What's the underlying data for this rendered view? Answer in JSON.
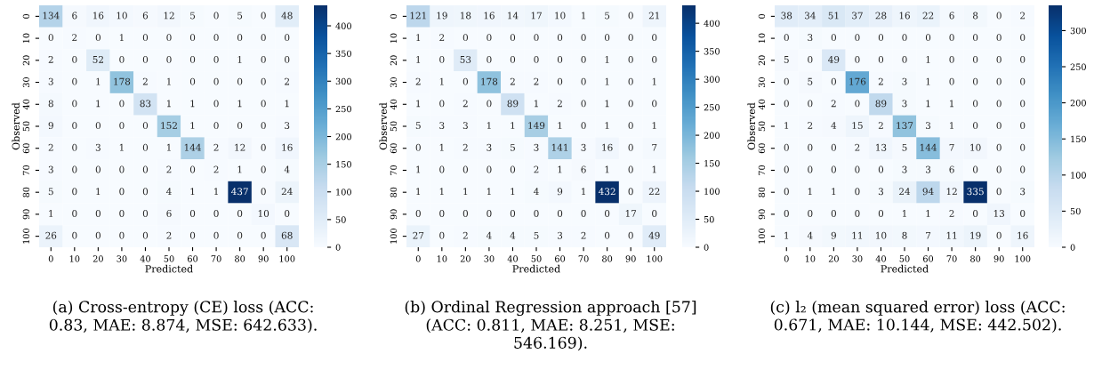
{
  "chart_data": [
    {
      "type": "heatmap",
      "xlabel": "Predicted",
      "ylabel": "Observed",
      "data_labels": true,
      "categories": [
        "0",
        "10",
        "20",
        "30",
        "40",
        "50",
        "60",
        "70",
        "80",
        "90",
        "100"
      ],
      "y_categories": [
        "0",
        "10",
        "20",
        "30",
        "40",
        "50",
        "60",
        "70",
        "80",
        "90",
        "100"
      ],
      "cells": [
        [
          134,
          6,
          16,
          10,
          6,
          12,
          5,
          0,
          5,
          0,
          48
        ],
        [
          0,
          2,
          0,
          1,
          0,
          0,
          0,
          0,
          0,
          0,
          0
        ],
        [
          2,
          0,
          52,
          0,
          0,
          0,
          0,
          0,
          1,
          0,
          0
        ],
        [
          3,
          0,
          1,
          178,
          2,
          1,
          0,
          0,
          0,
          0,
          2
        ],
        [
          8,
          0,
          1,
          0,
          83,
          1,
          1,
          0,
          1,
          0,
          1
        ],
        [
          9,
          0,
          0,
          0,
          0,
          152,
          1,
          0,
          0,
          0,
          3
        ],
        [
          2,
          0,
          3,
          1,
          0,
          1,
          144,
          2,
          12,
          0,
          16
        ],
        [
          3,
          0,
          0,
          0,
          0,
          2,
          0,
          2,
          1,
          0,
          4
        ],
        [
          5,
          0,
          1,
          0,
          0,
          4,
          1,
          1,
          437,
          0,
          24
        ],
        [
          1,
          0,
          0,
          0,
          0,
          6,
          0,
          0,
          0,
          10,
          0
        ],
        [
          26,
          0,
          0,
          0,
          0,
          2,
          0,
          0,
          0,
          0,
          68
        ]
      ],
      "clim": [
        0,
        437
      ],
      "cticks": [
        0,
        50,
        100,
        150,
        200,
        250,
        300,
        350,
        400
      ],
      "annotations": [
        "(a) Cross-entropy (CE) loss (ACC: 0.83, MAE: 8.874, MSE: 642.633)."
      ]
    },
    {
      "type": "heatmap",
      "xlabel": "Predicted",
      "ylabel": "Observed",
      "data_labels": true,
      "categories": [
        "0",
        "10",
        "20",
        "30",
        "40",
        "50",
        "60",
        "70",
        "80",
        "90",
        "100"
      ],
      "y_categories": [
        "0",
        "10",
        "20",
        "30",
        "40",
        "50",
        "60",
        "70",
        "80",
        "90",
        "100"
      ],
      "cells": [
        [
          121,
          19,
          18,
          16,
          14,
          17,
          10,
          1,
          5,
          0,
          21
        ],
        [
          1,
          2,
          0,
          0,
          0,
          0,
          0,
          0,
          0,
          0,
          0
        ],
        [
          1,
          0,
          53,
          0,
          0,
          0,
          0,
          0,
          1,
          0,
          0
        ],
        [
          2,
          1,
          0,
          178,
          2,
          2,
          0,
          0,
          1,
          0,
          1
        ],
        [
          1,
          0,
          2,
          0,
          89,
          1,
          2,
          0,
          1,
          0,
          0
        ],
        [
          5,
          3,
          3,
          1,
          1,
          149,
          1,
          0,
          1,
          0,
          1
        ],
        [
          0,
          1,
          2,
          3,
          5,
          3,
          141,
          3,
          16,
          0,
          7
        ],
        [
          1,
          0,
          0,
          0,
          0,
          2,
          1,
          6,
          1,
          0,
          1
        ],
        [
          1,
          1,
          1,
          1,
          1,
          4,
          9,
          1,
          432,
          0,
          22
        ],
        [
          0,
          0,
          0,
          0,
          0,
          0,
          0,
          0,
          0,
          17,
          0
        ],
        [
          27,
          0,
          2,
          4,
          4,
          5,
          3,
          2,
          0,
          0,
          49
        ]
      ],
      "clim": [
        0,
        432
      ],
      "cticks": [
        0,
        50,
        100,
        150,
        200,
        250,
        300,
        350,
        400
      ],
      "annotations": [
        "(b) Ordinal Regression approach [57] (ACC: 0.811, MAE: 8.251, MSE: 546.169)."
      ]
    },
    {
      "type": "heatmap",
      "xlabel": "Predicted",
      "ylabel": "Observed",
      "data_labels": true,
      "categories": [
        "0",
        "10",
        "20",
        "30",
        "40",
        "50",
        "60",
        "70",
        "80",
        "90",
        "100"
      ],
      "y_categories": [
        "0",
        "10",
        "20",
        "30",
        "40",
        "50",
        "60",
        "70",
        "80",
        "90",
        "100"
      ],
      "cells": [
        [
          38,
          34,
          51,
          37,
          28,
          16,
          22,
          6,
          8,
          0,
          2
        ],
        [
          0,
          3,
          0,
          0,
          0,
          0,
          0,
          0,
          0,
          0,
          0
        ],
        [
          5,
          0,
          49,
          0,
          0,
          0,
          1,
          0,
          0,
          0,
          0
        ],
        [
          0,
          5,
          0,
          176,
          2,
          3,
          1,
          0,
          0,
          0,
          0
        ],
        [
          0,
          0,
          2,
          0,
          89,
          3,
          1,
          1,
          0,
          0,
          0
        ],
        [
          1,
          2,
          4,
          15,
          2,
          137,
          3,
          1,
          0,
          0,
          0
        ],
        [
          0,
          0,
          0,
          2,
          13,
          5,
          144,
          7,
          10,
          0,
          0
        ],
        [
          0,
          0,
          0,
          0,
          0,
          3,
          3,
          6,
          0,
          0,
          0
        ],
        [
          0,
          1,
          1,
          0,
          3,
          24,
          94,
          12,
          335,
          0,
          3
        ],
        [
          0,
          0,
          0,
          0,
          0,
          1,
          1,
          2,
          0,
          13,
          0
        ],
        [
          1,
          4,
          9,
          11,
          10,
          8,
          7,
          11,
          19,
          0,
          16
        ]
      ],
      "clim": [
        0,
        335
      ],
      "cticks": [
        0,
        50,
        100,
        150,
        200,
        250,
        300
      ],
      "annotations": [
        "(c) l₂ (mean squared error) loss (ACC: 0.671, MAE: 10.144, MSE: 442.502)."
      ]
    }
  ]
}
